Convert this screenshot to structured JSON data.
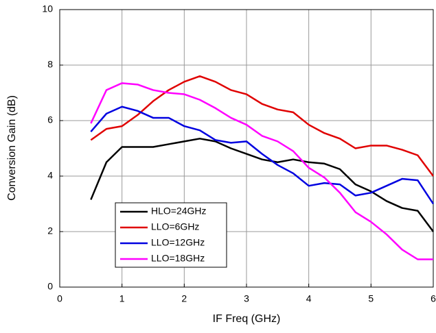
{
  "chart_data": {
    "type": "line",
    "xlabel": "IF Freq (GHz)",
    "ylabel": "Conversion Gain (dB)",
    "x": [
      0.5,
      0.75,
      1.0,
      1.25,
      1.5,
      1.75,
      2.0,
      2.25,
      2.5,
      2.75,
      3.0,
      3.25,
      3.5,
      3.75,
      4.0,
      4.25,
      4.5,
      4.75,
      5.0,
      5.25,
      5.5,
      5.75,
      6.0
    ],
    "series": [
      {
        "name": "HLO=24GHz",
        "color": "#000000",
        "values": [
          3.15,
          4.5,
          5.05,
          5.05,
          5.05,
          5.15,
          5.25,
          5.35,
          5.25,
          5.0,
          4.8,
          4.6,
          4.5,
          4.6,
          4.5,
          4.45,
          4.25,
          3.7,
          3.45,
          3.1,
          2.85,
          2.75,
          2.0
        ]
      },
      {
        "name": "LLO=6GHz",
        "color": "#e00000",
        "values": [
          5.3,
          5.7,
          5.8,
          6.2,
          6.7,
          7.1,
          7.4,
          7.6,
          7.4,
          7.1,
          6.95,
          6.6,
          6.4,
          6.3,
          5.85,
          5.55,
          5.35,
          5.0,
          5.1,
          5.1,
          4.95,
          4.75,
          4.0
        ]
      },
      {
        "name": "LLO=12GHz",
        "color": "#0000e0",
        "values": [
          5.6,
          6.25,
          6.5,
          6.35,
          6.1,
          6.1,
          5.8,
          5.65,
          5.3,
          5.2,
          5.25,
          4.8,
          4.4,
          4.1,
          3.65,
          3.75,
          3.7,
          3.3,
          3.4,
          3.65,
          3.9,
          3.85,
          3.0
        ]
      },
      {
        "name": "LLO=18GHz",
        "color": "#ff00ff",
        "values": [
          5.9,
          7.1,
          7.35,
          7.3,
          7.1,
          7.0,
          6.95,
          6.75,
          6.45,
          6.1,
          5.85,
          5.45,
          5.25,
          4.9,
          4.3,
          3.95,
          3.4,
          2.7,
          2.35,
          1.9,
          1.35,
          1.0,
          1.0
        ]
      }
    ],
    "xlim": [
      0,
      6
    ],
    "xticks": [
      0,
      1,
      2,
      3,
      4,
      5,
      6
    ],
    "ylim": [
      0,
      10
    ],
    "yticks": [
      0,
      2,
      4,
      6,
      8,
      10
    ],
    "grid": true,
    "legend": "lower left"
  }
}
